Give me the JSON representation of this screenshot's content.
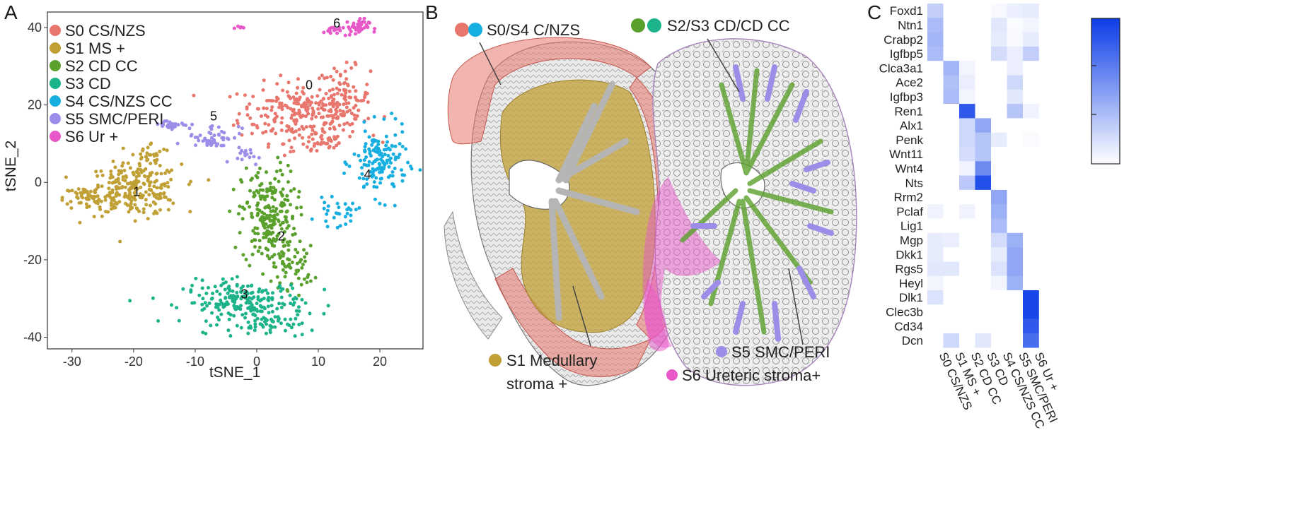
{
  "panels": {
    "A": {
      "letter": "A",
      "chart_data": {
        "type": "scatter",
        "xlabel": "tSNE_1",
        "ylabel": "tSNE_2",
        "xlim": [
          -34,
          27
        ],
        "ylim": [
          -43,
          44
        ],
        "xticks": [
          -30,
          -20,
          -10,
          0,
          10,
          20
        ],
        "yticks": [
          -40,
          -20,
          0,
          20,
          40
        ],
        "grid": false,
        "legend_position": "top-left",
        "series": [
          {
            "name": "S0 CS/NZS",
            "color": "#e8766d",
            "clusters": [
              {
                "cx": 7,
                "cy": 18,
                "rx": 9,
                "ry": 7,
                "n": 230
              },
              {
                "cx": 14,
                "cy": 22,
                "rx": 4,
                "ry": 7,
                "n": 90
              },
              {
                "cx": 10,
                "cy": 10,
                "rx": 5,
                "ry": 3,
                "n": 40
              }
            ]
          },
          {
            "name": "S1 MS +",
            "color": "#c0a035",
            "clusters": [
              {
                "cx": -20,
                "cy": -2,
                "rx": 7,
                "ry": 6,
                "n": 230
              },
              {
                "cx": -27,
                "cy": -4,
                "rx": 4,
                "ry": 3,
                "n": 60
              },
              {
                "cx": -17,
                "cy": 7,
                "rx": 3,
                "ry": 3,
                "n": 30
              }
            ]
          },
          {
            "name": "S2 CD CC",
            "color": "#5aa02c",
            "clusters": [
              {
                "cx": 2,
                "cy": -9,
                "rx": 4,
                "ry": 12,
                "n": 230
              },
              {
                "cx": 6,
                "cy": -22,
                "rx": 3,
                "ry": 5,
                "n": 50
              }
            ]
          },
          {
            "name": "S3 CD",
            "color": "#1db38a",
            "clusters": [
              {
                "cx": -2,
                "cy": -31,
                "rx": 9,
                "ry": 5,
                "n": 220
              },
              {
                "cx": 3,
                "cy": -37,
                "rx": 4,
                "ry": 3,
                "n": 40
              }
            ]
          },
          {
            "name": "S4 CS/NZS CC",
            "color": "#17aee0",
            "clusters": [
              {
                "cx": 20,
                "cy": 5,
                "rx": 4,
                "ry": 8,
                "n": 150
              },
              {
                "cx": 13,
                "cy": -8,
                "rx": 3,
                "ry": 3,
                "n": 30
              }
            ]
          },
          {
            "name": "S5 SMC/PERI",
            "color": "#9d8de8",
            "clusters": [
              {
                "cx": -7,
                "cy": 12,
                "rx": 4,
                "ry": 3,
                "n": 50
              },
              {
                "cx": -14,
                "cy": 15,
                "rx": 3,
                "ry": 1,
                "n": 25
              },
              {
                "cx": -2,
                "cy": 7,
                "rx": 2,
                "ry": 2,
                "n": 15
              }
            ]
          },
          {
            "name": "S6 Ur +",
            "color": "#e858c8",
            "clusters": [
              {
                "cx": 16,
                "cy": 40,
                "rx": 2,
                "ry": 2,
                "n": 40
              },
              {
                "cx": 12,
                "cy": 39,
                "rx": 1.5,
                "ry": 1,
                "n": 15
              },
              {
                "cx": -3,
                "cy": 40,
                "rx": 0.6,
                "ry": 0.4,
                "n": 5
              }
            ]
          }
        ],
        "cluster_labels": [
          {
            "text": "0",
            "x": 8.5,
            "y": 24
          },
          {
            "text": "1",
            "x": -19.5,
            "y": -3.5
          },
          {
            "text": "2",
            "x": 4,
            "y": -15
          },
          {
            "text": "3",
            "x": -2,
            "y": -30
          },
          {
            "text": "4",
            "x": 18,
            "y": 1
          },
          {
            "text": "5",
            "x": -7,
            "y": 16
          },
          {
            "text": "6",
            "x": 13,
            "y": 40
          }
        ]
      }
    },
    "B": {
      "letter": "B",
      "labels": {
        "s0s4": "S0/S4 C/NZS",
        "s2s3": "S2/S3 CD/CD CC",
        "s1_line1": "S1 Medullary",
        "s1_line2": "stroma +",
        "s5": "S5 SMC/PERI",
        "s6": "S6 Ureteric stroma+"
      },
      "colors": {
        "s0": "#e8766d",
        "s4": "#17aee0",
        "s2": "#5aa02c",
        "s3": "#1db38a",
        "s1": "#c0a035",
        "s5": "#9d8de8",
        "s6": "#e858c8"
      }
    },
    "C": {
      "letter": "C",
      "chart_data": {
        "type": "heatmap",
        "rows": [
          "Foxd1",
          "Ntn1",
          "Crabp2",
          "Igfbp5",
          "Clca3a1",
          "Ace2",
          "Igfbp3",
          "Ren1",
          "Alx1",
          "Penk",
          "Wnt11",
          "Wnt4",
          "Nts",
          "Rrm2",
          "Pclaf",
          "Lig1",
          "Mgp",
          "Dkk1",
          "Rgs5",
          "Heyl",
          "Dlk1",
          "Clec3b",
          "Cd34",
          "Dcn"
        ],
        "columns": [
          "S0 CS/NZS",
          "S1 MS +",
          "S2 CD CC",
          "S3 CD",
          "S4 CS/NZS CC",
          "S5 SMC/PERI",
          "S6 Ur +"
        ],
        "values": [
          [
            0.25,
            0,
            0,
            0,
            0.03,
            0.08,
            0.1
          ],
          [
            0.35,
            0,
            0,
            0,
            0.12,
            0.02,
            0.05
          ],
          [
            0.38,
            0,
            0,
            0,
            0.1,
            0.03,
            0.1
          ],
          [
            0.35,
            0,
            0,
            0,
            0.18,
            0.08,
            0.25
          ],
          [
            0,
            0.38,
            0.05,
            0,
            0,
            0.08,
            0
          ],
          [
            0,
            0.32,
            0.08,
            0,
            0,
            0.2,
            0
          ],
          [
            0,
            0.35,
            0.05,
            0,
            0,
            0.12,
            0
          ],
          [
            0,
            0,
            0.85,
            0,
            0,
            0.3,
            0.06
          ],
          [
            0,
            0,
            0.2,
            0.45,
            0,
            0,
            0
          ],
          [
            0,
            0,
            0.2,
            0.3,
            0.1,
            0,
            0.02
          ],
          [
            0,
            0,
            0.18,
            0.3,
            0,
            0,
            0
          ],
          [
            0,
            0,
            0.06,
            0.6,
            0,
            0,
            0
          ],
          [
            0,
            0,
            0.28,
            0.9,
            0,
            0,
            0
          ],
          [
            0,
            0,
            0,
            0,
            0.45,
            0,
            0
          ],
          [
            0.06,
            0,
            0.06,
            0,
            0.4,
            0,
            0
          ],
          [
            0,
            0,
            0,
            0,
            0.35,
            0,
            0
          ],
          [
            0.1,
            0.08,
            0,
            0,
            0.18,
            0.4,
            0
          ],
          [
            0.1,
            0,
            0,
            0,
            0.1,
            0.45,
            0
          ],
          [
            0.12,
            0.12,
            0,
            0,
            0.15,
            0.45,
            0
          ],
          [
            0.05,
            0,
            0,
            0,
            0.05,
            0.4,
            0
          ],
          [
            0.15,
            0,
            0,
            0,
            0,
            0,
            0.95
          ],
          [
            0,
            0,
            0,
            0,
            0,
            0,
            0.95
          ],
          [
            0,
            0,
            0,
            0,
            0,
            0,
            0.85
          ],
          [
            0,
            0.2,
            0,
            0.12,
            0,
            0,
            0.75
          ]
        ],
        "colormap": [
          "#ffffff",
          "#0b3ce8"
        ],
        "colorbar": true
      }
    }
  }
}
